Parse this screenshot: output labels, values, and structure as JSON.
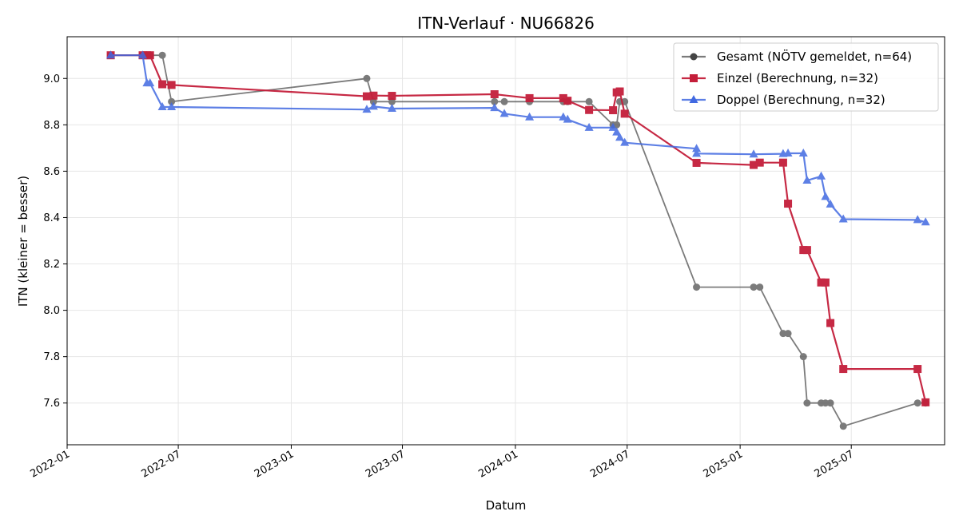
{
  "chart_data": {
    "type": "line",
    "title": "ITN-Verlauf · NU66826",
    "xlabel": "Datum",
    "ylabel": "ITN  (kleiner = besser)",
    "x_axis": "date",
    "xlim": [
      "2022-01-01",
      "2025-11-30"
    ],
    "ylim": [
      7.42,
      9.18
    ],
    "x_ticks": [
      "2022-01",
      "2022-07",
      "2023-01",
      "2023-07",
      "2024-01",
      "2024-07",
      "2025-01",
      "2025-07"
    ],
    "y_ticks": [
      7.6,
      7.8,
      8.0,
      8.2,
      8.4,
      8.6,
      8.8,
      9.0
    ],
    "y_tick_labels": [
      "7.6",
      "7.8",
      "8.0",
      "8.2",
      "8.4",
      "8.6",
      "8.8",
      "9.0"
    ],
    "grid": true,
    "legend": "top-right",
    "series": [
      {
        "name": "Gesamt (NÖTV gemeldet, n=64)",
        "color": "#444444",
        "marker": "circle",
        "points": [
          [
            "2022-03-13",
            9.1
          ],
          [
            "2022-05-04",
            9.1
          ],
          [
            "2022-05-11",
            9.1
          ],
          [
            "2022-05-16",
            9.1
          ],
          [
            "2022-06-05",
            9.1
          ],
          [
            "2022-06-20",
            8.9
          ],
          [
            "2023-05-04",
            9.0
          ],
          [
            "2023-05-15",
            8.9
          ],
          [
            "2023-06-14",
            8.9
          ],
          [
            "2023-11-28",
            8.9
          ],
          [
            "2023-12-14",
            8.9
          ],
          [
            "2024-01-24",
            8.9
          ],
          [
            "2024-03-19",
            8.9
          ],
          [
            "2024-03-26",
            8.9
          ],
          [
            "2024-04-30",
            8.9
          ],
          [
            "2024-06-08",
            8.8
          ],
          [
            "2024-06-14",
            8.8
          ],
          [
            "2024-06-19",
            8.9
          ],
          [
            "2024-06-27",
            8.9
          ],
          [
            "2024-10-22",
            8.1
          ],
          [
            "2025-01-23",
            8.1
          ],
          [
            "2025-02-02",
            8.1
          ],
          [
            "2025-03-12",
            7.9
          ],
          [
            "2025-03-20",
            7.9
          ],
          [
            "2025-04-14",
            7.8
          ],
          [
            "2025-04-20",
            7.6
          ],
          [
            "2025-05-13",
            7.6
          ],
          [
            "2025-05-20",
            7.6
          ],
          [
            "2025-05-28",
            7.6
          ],
          [
            "2025-06-18",
            7.5
          ],
          [
            "2025-10-17",
            7.6
          ],
          [
            "2025-10-30",
            7.6
          ]
        ]
      },
      {
        "name": "Einzel (Berechnung, n=32)",
        "color": "#c41e3a",
        "marker": "square",
        "points": [
          [
            "2022-03-13",
            9.1
          ],
          [
            "2022-05-04",
            9.1
          ],
          [
            "2022-05-11",
            9.1
          ],
          [
            "2022-05-16",
            9.1
          ],
          [
            "2022-06-05",
            8.975
          ],
          [
            "2022-06-20",
            8.972
          ],
          [
            "2023-05-04",
            8.923
          ],
          [
            "2023-05-15",
            8.926
          ],
          [
            "2023-06-14",
            8.925
          ],
          [
            "2023-11-28",
            8.932
          ],
          [
            "2024-01-24",
            8.915
          ],
          [
            "2024-03-19",
            8.915
          ],
          [
            "2024-03-26",
            8.904
          ],
          [
            "2024-04-30",
            8.864
          ],
          [
            "2024-06-08",
            8.863
          ],
          [
            "2024-06-14",
            8.94
          ],
          [
            "2024-06-19",
            8.944
          ],
          [
            "2024-06-27",
            8.848
          ],
          [
            "2024-10-22",
            8.636
          ],
          [
            "2025-01-23",
            8.627
          ],
          [
            "2025-02-02",
            8.637
          ],
          [
            "2025-03-12",
            8.637
          ],
          [
            "2025-03-20",
            8.46
          ],
          [
            "2025-04-14",
            8.26
          ],
          [
            "2025-04-20",
            8.26
          ],
          [
            "2025-05-13",
            8.12
          ],
          [
            "2025-05-20",
            8.12
          ],
          [
            "2025-05-28",
            7.945
          ],
          [
            "2025-06-18",
            7.747
          ],
          [
            "2025-10-17",
            7.747
          ],
          [
            "2025-10-30",
            7.603
          ]
        ]
      },
      {
        "name": "Doppel (Berechnung, n=32)",
        "color": "#4169e1",
        "marker": "triangle",
        "points": [
          [
            "2022-03-13",
            9.1
          ],
          [
            "2022-05-04",
            9.1
          ],
          [
            "2022-05-11",
            8.98
          ],
          [
            "2022-05-16",
            8.98
          ],
          [
            "2022-06-05",
            8.877
          ],
          [
            "2022-06-20",
            8.877
          ],
          [
            "2023-05-04",
            8.866
          ],
          [
            "2023-05-15",
            8.879
          ],
          [
            "2023-06-14",
            8.87
          ],
          [
            "2023-11-28",
            8.873
          ],
          [
            "2023-12-14",
            8.848
          ],
          [
            "2024-01-24",
            8.833
          ],
          [
            "2024-03-19",
            8.833
          ],
          [
            "2024-03-26",
            8.823
          ],
          [
            "2024-04-30",
            8.788
          ],
          [
            "2024-06-08",
            8.788
          ],
          [
            "2024-06-14",
            8.768
          ],
          [
            "2024-06-19",
            8.745
          ],
          [
            "2024-06-27",
            8.723
          ],
          [
            "2024-10-22",
            8.697
          ],
          [
            "2024-10-22",
            8.676
          ],
          [
            "2025-01-23",
            8.673
          ],
          [
            "2025-03-12",
            8.675
          ],
          [
            "2025-03-20",
            8.677
          ],
          [
            "2025-04-14",
            8.677
          ],
          [
            "2025-04-20",
            8.56
          ],
          [
            "2025-05-13",
            8.578
          ],
          [
            "2025-05-20",
            8.49
          ],
          [
            "2025-05-28",
            8.457
          ],
          [
            "2025-06-18",
            8.393
          ],
          [
            "2025-10-17",
            8.39
          ],
          [
            "2025-10-30",
            8.38
          ]
        ]
      }
    ]
  }
}
